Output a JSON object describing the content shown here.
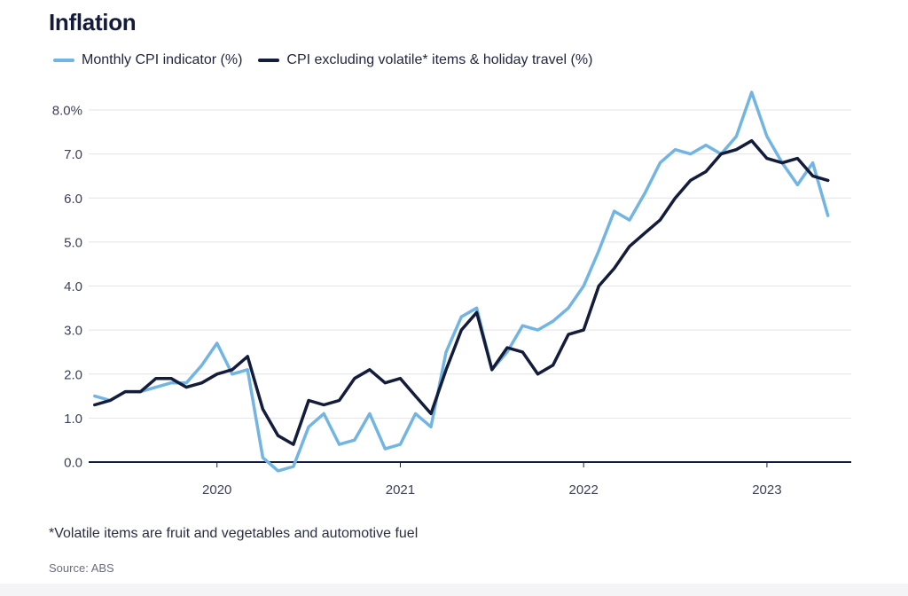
{
  "title": "Inflation",
  "colors": {
    "monthly": "#72b5e2",
    "excluding": "#141c3c",
    "grid": "#e3e3e8",
    "axis": "#141c3c",
    "tick": "#3c4058"
  },
  "chart_data": {
    "type": "line",
    "title": "Inflation",
    "xlabel": "",
    "ylabel": "",
    "ylim": [
      -0.2,
      8.4
    ],
    "yticks": [
      0,
      1,
      2,
      3,
      4,
      5,
      6,
      7,
      8
    ],
    "ytick_labels": [
      "0.0",
      "1.0",
      "2.0",
      "3.0",
      "4.0",
      "5.0",
      "6.0",
      "7.0",
      "8.0%"
    ],
    "xticks": [
      2020,
      2021,
      2022,
      2023
    ],
    "xtick_labels": [
      "2020",
      "2021",
      "2022",
      "2023"
    ],
    "xlim": [
      2019.3,
      2023.46
    ],
    "grid": true,
    "legend_position": "top",
    "x": [
      2019.333,
      2019.417,
      2019.5,
      2019.583,
      2019.667,
      2019.75,
      2019.833,
      2019.917,
      2020.0,
      2020.083,
      2020.167,
      2020.25,
      2020.333,
      2020.417,
      2020.5,
      2020.583,
      2020.667,
      2020.75,
      2020.833,
      2020.917,
      2021.0,
      2021.083,
      2021.167,
      2021.25,
      2021.333,
      2021.417,
      2021.5,
      2021.583,
      2021.667,
      2021.75,
      2021.833,
      2021.917,
      2022.0,
      2022.083,
      2022.167,
      2022.25,
      2022.333,
      2022.417,
      2022.5,
      2022.583,
      2022.667,
      2022.75,
      2022.833,
      2022.917,
      2023.0,
      2023.083,
      2023.167,
      2023.25,
      2023.333
    ],
    "series": [
      {
        "name": "Monthly CPI indicator (%)",
        "color": "#72b5e2",
        "values": [
          1.5,
          1.4,
          1.6,
          1.6,
          1.7,
          1.8,
          1.8,
          2.2,
          2.7,
          2.0,
          2.1,
          0.1,
          -0.2,
          -0.1,
          0.8,
          1.1,
          0.4,
          0.5,
          1.1,
          0.3,
          0.4,
          1.1,
          0.8,
          2.5,
          3.3,
          3.5,
          2.1,
          2.5,
          3.1,
          3.0,
          3.2,
          3.5,
          4.0,
          4.8,
          5.7,
          5.5,
          6.1,
          6.8,
          7.1,
          7.0,
          7.2,
          7.0,
          7.4,
          8.4,
          7.4,
          6.8,
          6.3,
          6.8,
          5.6
        ]
      },
      {
        "name": "CPI excluding volatile* items & holiday travel (%)",
        "color": "#141c3c",
        "values": [
          1.3,
          1.4,
          1.6,
          1.6,
          1.9,
          1.9,
          1.7,
          1.8,
          2.0,
          2.1,
          2.4,
          1.2,
          0.6,
          0.4,
          1.4,
          1.3,
          1.4,
          1.9,
          2.1,
          1.8,
          1.9,
          1.5,
          1.1,
          2.1,
          3.0,
          3.4,
          2.1,
          2.6,
          2.5,
          2.0,
          2.2,
          2.9,
          3.0,
          4.0,
          4.4,
          4.9,
          5.2,
          5.5,
          6.0,
          6.4,
          6.6,
          7.0,
          7.1,
          7.3,
          6.9,
          6.8,
          6.9,
          6.5,
          6.4
        ]
      }
    ]
  },
  "footnote": "*Volatile items are fruit and vegetables and automotive fuel",
  "source": "Source: ABS"
}
